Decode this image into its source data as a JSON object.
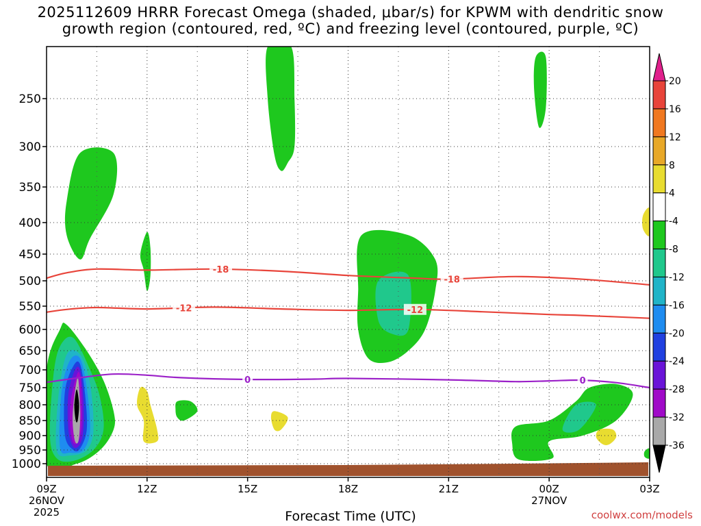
{
  "chart_data": {
    "type": "contour",
    "title_line1": "2025112609 HRRR Forecast Omega (shaded, μbar/s) for KPWM with dendritic snow",
    "title_line2": "growth region (contoured, red, ºC) and freezing level (contoured, purple, ºC)",
    "xlabel": "Forecast Time (UTC)",
    "credit": "coolwx.com/models",
    "x_range_hours": [
      0,
      18
    ],
    "x_ticks": [
      {
        "h": 0,
        "label": "09Z",
        "sub1": "26NOV",
        "sub2": "2025"
      },
      {
        "h": 3,
        "label": "12Z",
        "sub1": "",
        "sub2": ""
      },
      {
        "h": 6,
        "label": "15Z",
        "sub1": "",
        "sub2": ""
      },
      {
        "h": 9,
        "label": "18Z",
        "sub1": "",
        "sub2": ""
      },
      {
        "h": 12,
        "label": "21Z",
        "sub1": "",
        "sub2": ""
      },
      {
        "h": 15,
        "label": "00Z",
        "sub1": "27NOV",
        "sub2": ""
      },
      {
        "h": 18,
        "label": "03Z",
        "sub1": "",
        "sub2": ""
      }
    ],
    "y_ticks_hPa": [
      250,
      300,
      350,
      400,
      450,
      500,
      550,
      600,
      650,
      700,
      750,
      800,
      850,
      900,
      950,
      1000
    ],
    "y_range_hPa": [
      200,
      1025
    ],
    "isotherms": [
      {
        "label": "-18",
        "color": "#e8443a",
        "label_hours": [
          5.2,
          12.1
        ],
        "points": [
          [
            0,
            495
          ],
          [
            0.6,
            485
          ],
          [
            1.5,
            478
          ],
          [
            3,
            480
          ],
          [
            5,
            478
          ],
          [
            7,
            482
          ],
          [
            9,
            490
          ],
          [
            11,
            495
          ],
          [
            12,
            497
          ],
          [
            14,
            492
          ],
          [
            16,
            497
          ],
          [
            18,
            508
          ]
        ]
      },
      {
        "label": "-12",
        "color": "#e8443a",
        "label_hours": [
          4.1,
          11.0
        ],
        "points": [
          [
            0,
            563
          ],
          [
            0.6,
            557
          ],
          [
            1.5,
            553
          ],
          [
            3,
            556
          ],
          [
            5,
            552
          ],
          [
            7,
            556
          ],
          [
            9,
            559
          ],
          [
            11,
            557
          ],
          [
            13,
            562
          ],
          [
            15,
            568
          ],
          [
            16,
            570
          ],
          [
            18,
            576
          ]
        ]
      },
      {
        "label": "0",
        "color": "#9b20c8",
        "label_hours": [
          6.0,
          16.0
        ],
        "points": [
          [
            0,
            735
          ],
          [
            1,
            722
          ],
          [
            2,
            712
          ],
          [
            3,
            715
          ],
          [
            4,
            722
          ],
          [
            6,
            727
          ],
          [
            8,
            726
          ],
          [
            9,
            724
          ],
          [
            12,
            728
          ],
          [
            14,
            733
          ],
          [
            15,
            731
          ],
          [
            16,
            729
          ],
          [
            17,
            736
          ],
          [
            18,
            750
          ]
        ]
      }
    ],
    "omega_regions": [
      {
        "level": "-4 to -8",
        "color": "#1ec81e",
        "shape": "upper-left column",
        "points": [
          [
            1.0,
            308
          ],
          [
            2.0,
            308
          ],
          [
            2.0,
            360
          ],
          [
            1.3,
            425
          ],
          [
            1.0,
            460
          ],
          [
            0.6,
            420
          ],
          [
            0.6,
            370
          ]
        ]
      },
      {
        "level": "-4 to -8",
        "color": "#1ec81e",
        "shape": "upper tall column",
        "points": [
          [
            6.6,
            200
          ],
          [
            7.3,
            200
          ],
          [
            7.4,
            250
          ],
          [
            7.4,
            300
          ],
          [
            7.2,
            320
          ],
          [
            7.0,
            330
          ],
          [
            6.8,
            310
          ],
          [
            6.6,
            250
          ]
        ]
      },
      {
        "level": "-4 to -8",
        "color": "#1ec81e",
        "shape": "upper right small",
        "points": [
          [
            14.6,
            210
          ],
          [
            14.9,
            210
          ],
          [
            14.9,
            260
          ],
          [
            14.7,
            280
          ],
          [
            14.55,
            240
          ]
        ]
      },
      {
        "level": "-4 to -8",
        "color": "#1ec81e",
        "shape": "12Z sliver",
        "points": [
          [
            3.0,
            415
          ],
          [
            3.1,
            440
          ],
          [
            3.1,
            490
          ],
          [
            3.0,
            520
          ],
          [
            2.9,
            480
          ],
          [
            2.8,
            450
          ]
        ]
      },
      {
        "level": "-4 to -8",
        "color": "#1ec81e",
        "shape": "mid 19Z blob",
        "points": [
          [
            9.4,
            420
          ],
          [
            10.8,
            420
          ],
          [
            11.6,
            460
          ],
          [
            11.6,
            520
          ],
          [
            11.3,
            600
          ],
          [
            10.8,
            650
          ],
          [
            10.2,
            680
          ],
          [
            9.6,
            670
          ],
          [
            9.3,
            600
          ],
          [
            9.3,
            520
          ]
        ]
      },
      {
        "level": "-8 to -12",
        "color": "#20c88c",
        "shape": "mid 19Z core",
        "points": [
          [
            9.9,
            500
          ],
          [
            10.8,
            490
          ],
          [
            10.8,
            600
          ],
          [
            10.3,
            610
          ],
          [
            9.9,
            580
          ]
        ]
      },
      {
        "level": "-4 to -8",
        "color": "#1ec81e",
        "shape": "low-level left column",
        "points": [
          [
            0.4,
            600
          ],
          [
            0.6,
            590
          ],
          [
            1.2,
            650
          ],
          [
            1.7,
            730
          ],
          [
            2.0,
            820
          ],
          [
            2.0,
            880
          ],
          [
            1.6,
            950
          ],
          [
            0.9,
            1000
          ],
          [
            0,
            1000
          ],
          [
            0,
            700
          ]
        ]
      },
      {
        "level": "-8 to -12",
        "color": "#20c88c",
        "shape": "low-level core 1",
        "points": [
          [
            0.4,
            640
          ],
          [
            0.8,
            620
          ],
          [
            1.3,
            700
          ],
          [
            1.6,
            780
          ],
          [
            1.7,
            880
          ],
          [
            1.4,
            950
          ],
          [
            0.8,
            990
          ],
          [
            0.3,
            980
          ],
          [
            0.1,
            900
          ],
          [
            0.2,
            720
          ]
        ]
      },
      {
        "level": "-12 to -16",
        "color": "#20b4c8",
        "shape": "low-level core 2",
        "points": [
          [
            0.6,
            660
          ],
          [
            1.0,
            660
          ],
          [
            1.3,
            740
          ],
          [
            1.4,
            880
          ],
          [
            1.2,
            950
          ],
          [
            0.7,
            970
          ],
          [
            0.3,
            950
          ],
          [
            0.35,
            780
          ]
        ]
      },
      {
        "level": "-16 to -20",
        "color": "#1e8cf0",
        "shape": "low-level core 3",
        "points": [
          [
            0.7,
            675
          ],
          [
            1.0,
            670
          ],
          [
            1.2,
            750
          ],
          [
            1.3,
            880
          ],
          [
            1.1,
            950
          ],
          [
            0.7,
            960
          ],
          [
            0.4,
            940
          ],
          [
            0.45,
            760
          ]
        ]
      },
      {
        "level": "-20 to -24",
        "color": "#2040e0",
        "shape": "low-level core 4",
        "points": [
          [
            0.8,
            690
          ],
          [
            1.0,
            685
          ],
          [
            1.15,
            770
          ],
          [
            1.2,
            880
          ],
          [
            1.0,
            945
          ],
          [
            0.8,
            950
          ],
          [
            0.55,
            900
          ],
          [
            0.55,
            760
          ]
        ]
      },
      {
        "level": "-24 to -28",
        "color": "#6a14d8",
        "shape": "low-level core 5",
        "points": [
          [
            0.85,
            700
          ],
          [
            1.0,
            700
          ],
          [
            1.1,
            780
          ],
          [
            1.1,
            880
          ],
          [
            1.0,
            930
          ],
          [
            0.8,
            940
          ],
          [
            0.65,
            880
          ],
          [
            0.65,
            770
          ]
        ]
      },
      {
        "level": "-28 to -32",
        "color": "#a00ac8",
        "shape": "low-level core 6",
        "points": [
          [
            0.9,
            715
          ],
          [
            1.0,
            715
          ],
          [
            1.05,
            790
          ],
          [
            1.05,
            870
          ],
          [
            0.95,
            920
          ],
          [
            0.8,
            925
          ],
          [
            0.7,
            870
          ],
          [
            0.72,
            790
          ]
        ]
      },
      {
        "level": "-32 to -36",
        "color": "#a9a9a9",
        "shape": "low-level core 7",
        "points": [
          [
            0.9,
            730
          ],
          [
            0.95,
            728
          ],
          [
            1.0,
            800
          ],
          [
            1.0,
            860
          ],
          [
            0.95,
            920
          ],
          [
            0.85,
            920
          ],
          [
            0.78,
            860
          ],
          [
            0.8,
            800
          ]
        ]
      },
      {
        "level": "< -36",
        "color": "#000000",
        "shape": "low-level core 8",
        "points": [
          [
            0.9,
            755
          ],
          [
            0.97,
            800
          ],
          [
            0.93,
            850
          ],
          [
            0.87,
            850
          ],
          [
            0.83,
            800
          ]
        ]
      },
      {
        "level": "-4 to -8",
        "color": "#1ec81e",
        "shape": "12-13Z small",
        "points": [
          [
            3.9,
            790
          ],
          [
            4.3,
            790
          ],
          [
            4.5,
            820
          ],
          [
            4.1,
            850
          ],
          [
            3.9,
            840
          ],
          [
            3.85,
            815
          ]
        ]
      },
      {
        "level": "-4 to -8",
        "color": "#1ec81e",
        "shape": "lower right",
        "points": [
          [
            16.2,
            750
          ],
          [
            17.0,
            740
          ],
          [
            17.5,
            770
          ],
          [
            17.0,
            850
          ],
          [
            16.0,
            900
          ],
          [
            15.0,
            920
          ],
          [
            15.1,
            980
          ],
          [
            14.1,
            985
          ],
          [
            13.9,
            930
          ],
          [
            14.0,
            870
          ],
          [
            15.0,
            850
          ],
          [
            15.8,
            790
          ]
        ]
      },
      {
        "level": "-8 to -12",
        "color": "#20c88c",
        "shape": "lower right core",
        "points": [
          [
            15.8,
            800
          ],
          [
            16.4,
            800
          ],
          [
            15.9,
            880
          ],
          [
            15.4,
            880
          ]
        ]
      },
      {
        "level": "-4 to -8",
        "color": "#1ec81e",
        "shape": "lower right edge",
        "points": [
          [
            17.85,
            955
          ],
          [
            18.0,
            945
          ],
          [
            18.0,
            980
          ],
          [
            17.85,
            975
          ]
        ]
      },
      {
        "level": "4 to 8",
        "color": "#e8dc30",
        "shape": "12Z low",
        "points": [
          [
            2.8,
            750
          ],
          [
            3.0,
            760
          ],
          [
            3.1,
            800
          ],
          [
            3.3,
            880
          ],
          [
            3.3,
            920
          ],
          [
            2.9,
            920
          ],
          [
            2.9,
            850
          ],
          [
            2.7,
            800
          ]
        ]
      },
      {
        "level": "4 to 8",
        "color": "#e8dc30",
        "shape": "16Z low",
        "points": [
          [
            6.8,
            820
          ],
          [
            7.2,
            840
          ],
          [
            7.0,
            880
          ],
          [
            6.8,
            880
          ],
          [
            6.7,
            840
          ]
        ]
      },
      {
        "level": "4 to 8",
        "color": "#e8dc30",
        "shape": "02Z low",
        "points": [
          [
            16.5,
            880
          ],
          [
            16.9,
            880
          ],
          [
            17.0,
            905
          ],
          [
            16.8,
            930
          ],
          [
            16.6,
            930
          ],
          [
            16.4,
            905
          ]
        ]
      },
      {
        "level": "4 to 8",
        "color": "#e8dc30",
        "shape": "upper right edge",
        "points": [
          [
            18.0,
            380
          ],
          [
            17.8,
            390
          ],
          [
            17.8,
            410
          ],
          [
            18.0,
            420
          ]
        ]
      }
    ],
    "terrain_color": "#a0522d",
    "colorbar": {
      "labels": [
        "20",
        "16",
        "12",
        "8",
        "4",
        "-4",
        "-8",
        "-12",
        "-16",
        "-20",
        "-24",
        "-28",
        "-32",
        "-36"
      ],
      "colors": [
        "#e8443a",
        "#f07820",
        "#e8a828",
        "#e8dc30",
        "#ffffff",
        "#1ec81e",
        "#20c88c",
        "#20b4c8",
        "#1e8cf0",
        "#2040e0",
        "#6a14d8",
        "#a00ac8",
        "#a9a9a9"
      ],
      "top_arrow_color": "#e0208c",
      "bottom_arrow_color": "#000000"
    }
  }
}
